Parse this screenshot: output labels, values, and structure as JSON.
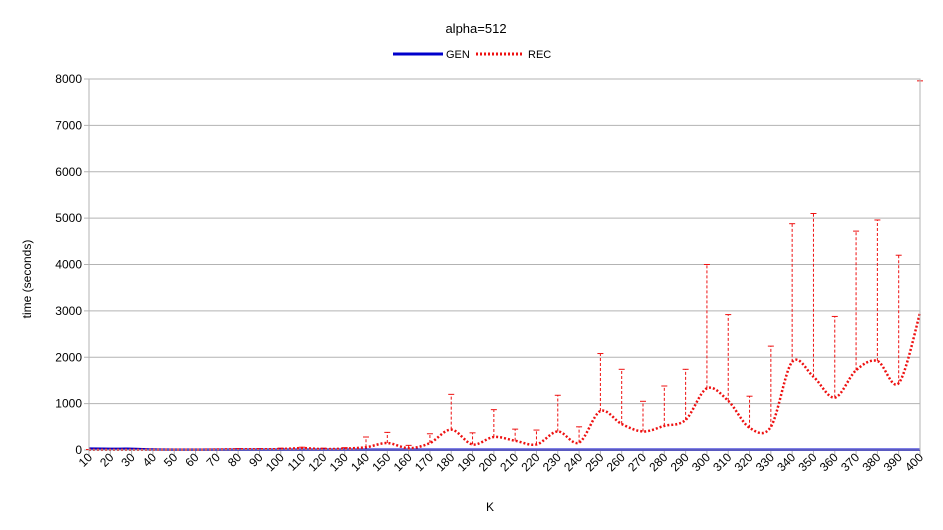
{
  "chart_data": {
    "type": "line",
    "title": "alpha=512",
    "xlabel": "K",
    "ylabel": "time (seconds)",
    "ylim": [
      0,
      8000
    ],
    "yticks": [
      0,
      1000,
      2000,
      3000,
      4000,
      5000,
      6000,
      7000,
      8000
    ],
    "grid": true,
    "legend_position": "top-center",
    "x": [
      10,
      20,
      30,
      40,
      50,
      60,
      70,
      80,
      90,
      100,
      110,
      120,
      130,
      140,
      150,
      160,
      170,
      180,
      190,
      200,
      210,
      220,
      230,
      240,
      250,
      260,
      270,
      280,
      290,
      300,
      310,
      320,
      330,
      340,
      350,
      360,
      370,
      380,
      390,
      400
    ],
    "series": [
      {
        "name": "GEN",
        "color": "#0000cc",
        "style": "solid",
        "values": [
          30,
          25,
          25,
          10,
          5,
          5,
          5,
          5,
          5,
          5,
          5,
          5,
          5,
          5,
          5,
          5,
          5,
          5,
          5,
          5,
          5,
          5,
          5,
          5,
          5,
          5,
          5,
          5,
          5,
          5,
          5,
          5,
          5,
          5,
          5,
          5,
          5,
          5,
          5,
          5
        ]
      },
      {
        "name": "REC",
        "color": "#ee1111",
        "style": "dotted",
        "values": [
          5,
          5,
          5,
          5,
          5,
          5,
          10,
          15,
          15,
          20,
          40,
          20,
          30,
          60,
          150,
          40,
          150,
          440,
          120,
          280,
          200,
          120,
          400,
          160,
          840,
          560,
          400,
          520,
          650,
          1330,
          1060,
          480,
          500,
          1900,
          1580,
          1130,
          1720,
          1920,
          1440,
          2950
        ],
        "error_upper": [
          10,
          10,
          10,
          10,
          10,
          10,
          20,
          30,
          30,
          40,
          60,
          40,
          50,
          280,
          380,
          100,
          350,
          1200,
          370,
          870,
          450,
          430,
          1180,
          500,
          2080,
          1740,
          1050,
          1380,
          1740,
          4000,
          2920,
          1160,
          2240,
          4880,
          5100,
          2880,
          4720,
          4960,
          4200,
          7960
        ]
      }
    ]
  }
}
